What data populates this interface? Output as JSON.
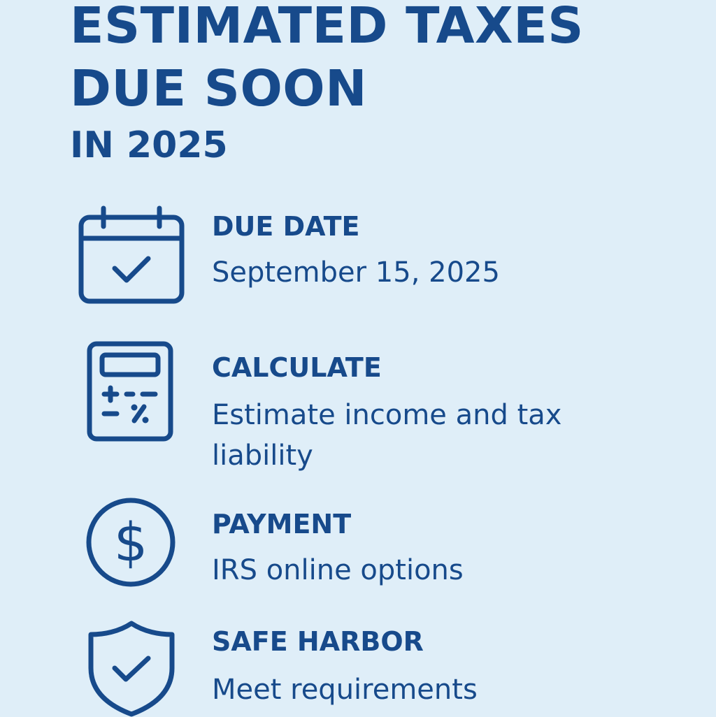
{
  "header": {
    "title_line1": "ESTIMATED TAXES",
    "title_line2": "DUE SOON",
    "subtitle": "IN 2025"
  },
  "colors": {
    "background": "#dfeef8",
    "primary": "#174a8b"
  },
  "items": [
    {
      "icon": "calendar-check-icon",
      "label": "DUE DATE",
      "desc": "September 15, 2025"
    },
    {
      "icon": "calculator-icon",
      "label": "CALCULATE",
      "desc": "Estimate income and tax liability"
    },
    {
      "icon": "dollar-circle-icon",
      "label": "PAYMENT",
      "desc": "IRS online options"
    },
    {
      "icon": "shield-check-icon",
      "label": "SAFE HARBOR",
      "desc": "Meet requirements"
    }
  ]
}
